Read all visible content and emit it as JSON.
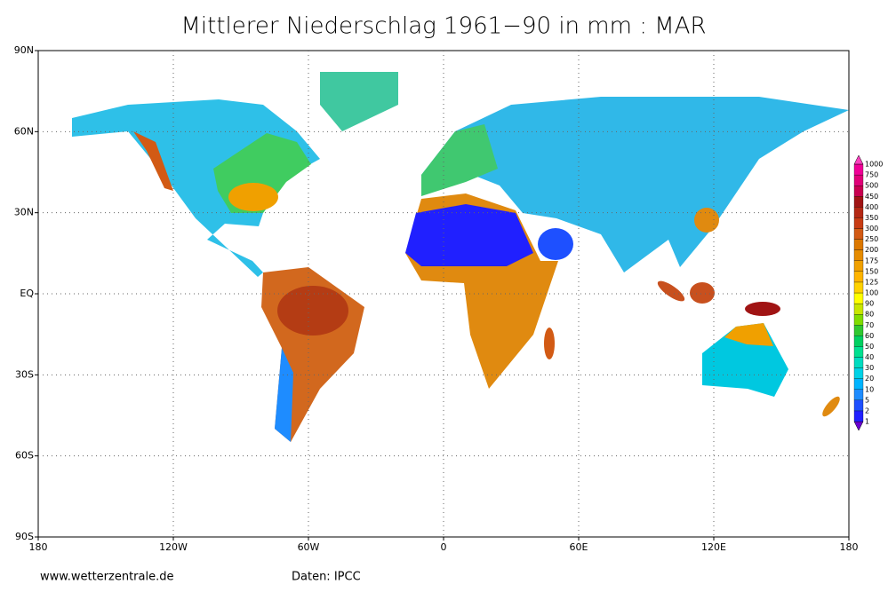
{
  "map": {
    "title": "Mittlerer Niederschlag 1961−90 in mm : MAR",
    "xticks": [
      {
        "value": -180,
        "label": "180"
      },
      {
        "value": -120,
        "label": "120W"
      },
      {
        "value": -60,
        "label": "60W"
      },
      {
        "value": 0,
        "label": "0"
      },
      {
        "value": 60,
        "label": "60E"
      },
      {
        "value": 120,
        "label": "120E"
      },
      {
        "value": 180,
        "label": "180"
      }
    ],
    "yticks": [
      {
        "value": 90,
        "label": "90N"
      },
      {
        "value": 60,
        "label": "60N"
      },
      {
        "value": 30,
        "label": "30N"
      },
      {
        "value": 0,
        "label": "EQ"
      },
      {
        "value": -30,
        "label": "30S"
      },
      {
        "value": -60,
        "label": "60S"
      },
      {
        "value": -90,
        "label": "90S"
      }
    ],
    "xlim": [
      -180,
      180
    ],
    "ylim": [
      -90,
      90
    ],
    "grid": true,
    "colorbar": {
      "levels": [
        1,
        2,
        5,
        10,
        20,
        30,
        40,
        50,
        60,
        70,
        80,
        90,
        100,
        125,
        150,
        175,
        200,
        250,
        300,
        350,
        400,
        450,
        500,
        750,
        1000
      ],
      "colors": [
        "#6a00d0",
        "#2020ff",
        "#1e50ff",
        "#1e8cff",
        "#00b4ff",
        "#00d2e6",
        "#00dcc0",
        "#00e090",
        "#00d060",
        "#30c830",
        "#80dc00",
        "#c8e600",
        "#ffff00",
        "#ffd200",
        "#ffb400",
        "#f0a000",
        "#e68c00",
        "#dc7800",
        "#d25a14",
        "#c83c14",
        "#b42814",
        "#a01414",
        "#c80050",
        "#e00078",
        "#f00096",
        "#ff40c0"
      ]
    },
    "source": "www.wetterzentrale.de",
    "credit": "Daten: IPCC"
  }
}
